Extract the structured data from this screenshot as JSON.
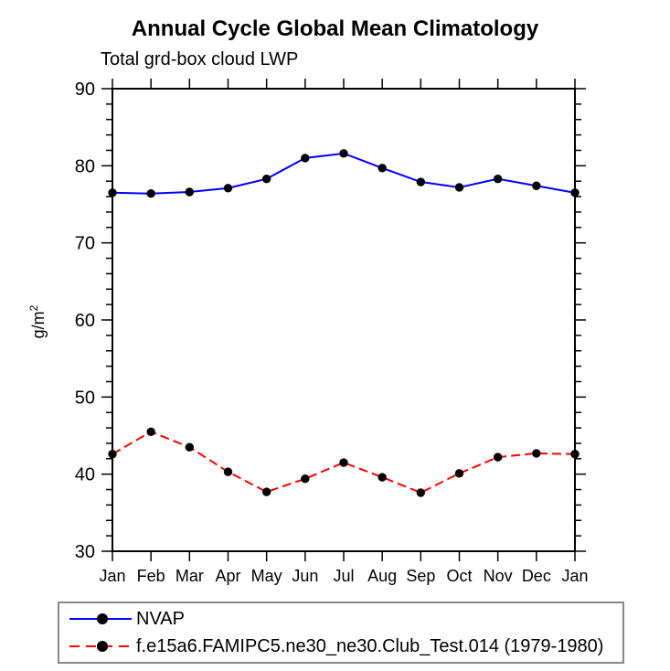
{
  "page": {
    "background": "#ffffff",
    "text_color": "#000000"
  },
  "chart_data": {
    "type": "line",
    "title": "Annual Cycle Global Mean Climatology",
    "subtitle": "Total grd-box cloud LWP",
    "ylabel_base": "g/m",
    "ylabel_sup": "2",
    "categories": [
      "Jan",
      "Feb",
      "Mar",
      "Apr",
      "May",
      "Jun",
      "Jul",
      "Aug",
      "Sep",
      "Oct",
      "Nov",
      "Dec",
      "Jan"
    ],
    "ylim": [
      30,
      90
    ],
    "ytick_major": 10,
    "ytick_minor": 2,
    "grid": false,
    "legend_position": "bottom-left",
    "axis_color": "#000000",
    "series": [
      {
        "name": "NVAP",
        "color": "#0000ff",
        "style": "solid",
        "marker": "circle",
        "marker_color": "#000000",
        "values": [
          76.5,
          76.4,
          76.6,
          77.1,
          78.3,
          81.0,
          81.6,
          79.7,
          77.9,
          77.2,
          78.3,
          77.4,
          76.5
        ]
      },
      {
        "name": "f.e15a6.FAMIPC5.ne30_ne30.Club_Test.014 (1979-1980)",
        "color": "#ff0000",
        "style": "dashed",
        "marker": "circle",
        "marker_color": "#000000",
        "values": [
          42.6,
          45.5,
          43.5,
          40.3,
          37.7,
          39.4,
          41.5,
          39.6,
          37.6,
          40.1,
          42.2,
          42.7,
          42.6
        ]
      }
    ]
  }
}
